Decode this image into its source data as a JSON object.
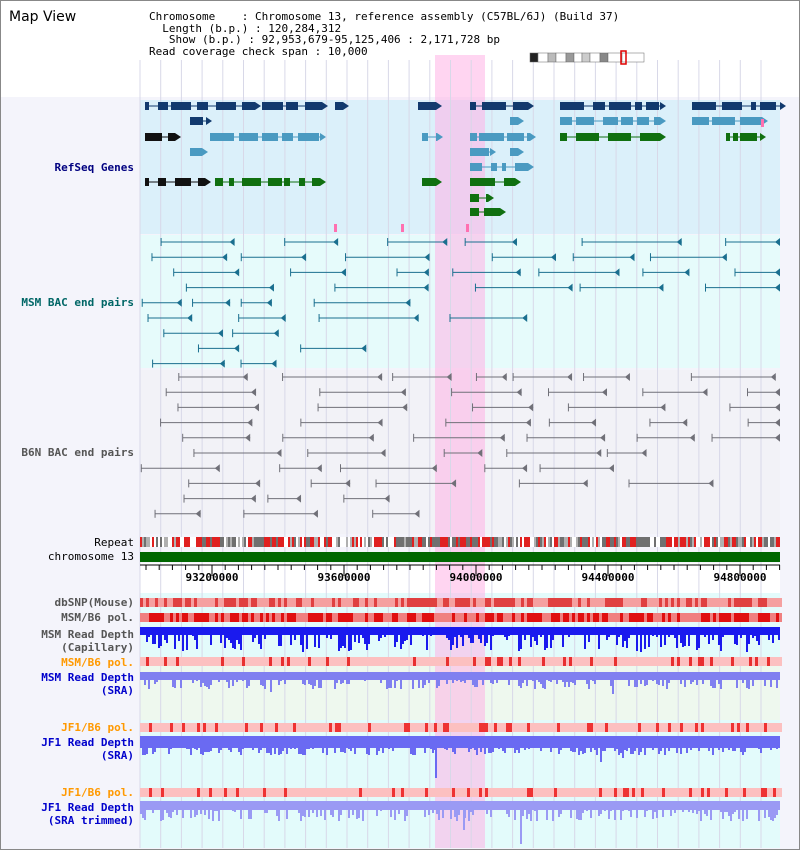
{
  "panel": {
    "title": "Map View"
  },
  "info": {
    "chromosome_key": "Chromosome",
    "chromosome_value": "Chromosome 13, reference assembly (C57BL/6J) (Build 37)",
    "length_key": "Length (b.p.)",
    "length_value": "120,284,312",
    "show_key": "Show (b.p.)",
    "show_value": "92,953,679-95,125,406 : 2,171,728 bp",
    "coverage_key": "Read coverage check span",
    "coverage_value": "10,000"
  },
  "tracks": {
    "refseq": "RefSeq Genes",
    "msm_bac": "MSM BAC end pairs",
    "b6n_bac": "B6N BAC end pairs",
    "repeat": "Repeat",
    "chromosome": "chromosome 13",
    "dbsnp": "dbSNP(Mouse)",
    "msm_b6_pol": "MSM/B6 pol.",
    "msm_depth_cap_1": "MSM Read Depth",
    "msm_depth_cap_2": "(Capillary)",
    "msm_b6_pol_sra": "MSM/B6 pol.",
    "msm_depth_sra_1": "MSM Read Depth",
    "msm_depth_sra_2": "(SRA)",
    "jf1_pol": "JF1/B6 pol.",
    "jf1_depth_1": "JF1 Read Depth",
    "jf1_depth_2": "(SRA)",
    "jf1_pol_trim": "JF1/B6 pol.",
    "jf1_trim_1": "JF1 Read Depth",
    "jf1_trim_2": "(SRA trimmed)"
  },
  "axis": {
    "ticks": [
      "93200000",
      "93600000",
      "94000000",
      "94400000",
      "94800000"
    ]
  },
  "colors": {
    "label_navy": "#000080",
    "label_teal": "#006666",
    "label_gray": "#555555",
    "label_orange": "#ff9900",
    "label_blue": "#0000cc",
    "highlight": "#ffb3e6"
  }
}
